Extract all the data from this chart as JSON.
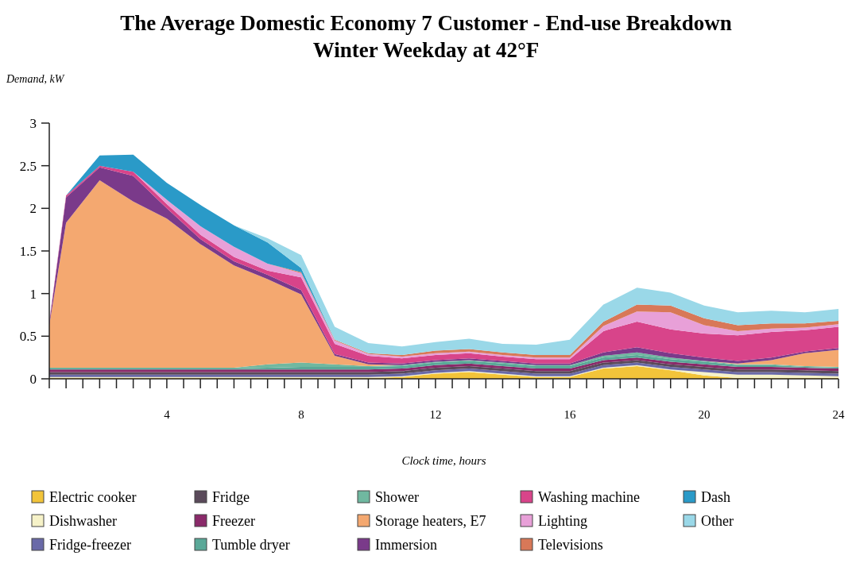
{
  "chart_data": {
    "type": "area",
    "stacked": true,
    "title": "The Average Domestic Economy 7 Customer - End-use Breakdown",
    "subtitle": "Winter Weekday at 42°F",
    "ylabel": "Demand, kW",
    "xlabel": "Clock time, hours",
    "legend": "bottom",
    "grid": false,
    "x": [
      0.5,
      1,
      2,
      3,
      4,
      5,
      6,
      7,
      8,
      9,
      10,
      11,
      12,
      13,
      14,
      15,
      16,
      17,
      18,
      19,
      20,
      21,
      22,
      23,
      24
    ],
    "xlim": [
      0.5,
      24
    ],
    "xticks": [
      {
        "value": 0.5,
        "label": null
      },
      {
        "value": 1,
        "label": null
      },
      {
        "value": 1.5,
        "label": null
      },
      {
        "value": 2,
        "label": null
      },
      {
        "value": 2.5,
        "label": null
      },
      {
        "value": 3,
        "label": null
      },
      {
        "value": 3.5,
        "label": null
      },
      4,
      {
        "value": 4.5,
        "label": null
      },
      {
        "value": 5,
        "label": null
      },
      {
        "value": 5.5,
        "label": null
      },
      {
        "value": 6,
        "label": null
      },
      {
        "value": 6.5,
        "label": null
      },
      {
        "value": 7,
        "label": null
      },
      {
        "value": 7.5,
        "label": null
      },
      8,
      {
        "value": 8.5,
        "label": null
      },
      {
        "value": 9,
        "label": null
      },
      {
        "value": 9.5,
        "label": null
      },
      {
        "value": 10,
        "label": null
      },
      {
        "value": 10.5,
        "label": null
      },
      {
        "value": 11,
        "label": null
      },
      {
        "value": 11.5,
        "label": null
      },
      12,
      {
        "value": 12.5,
        "label": null
      },
      {
        "value": 13,
        "label": null
      },
      {
        "value": 13.5,
        "label": null
      },
      {
        "value": 14,
        "label": null
      },
      {
        "value": 14.5,
        "label": null
      },
      {
        "value": 15,
        "label": null
      },
      {
        "value": 15.5,
        "label": null
      },
      16,
      {
        "value": 16.5,
        "label": null
      },
      {
        "value": 17,
        "label": null
      },
      {
        "value": 17.5,
        "label": null
      },
      {
        "value": 18,
        "label": null
      },
      {
        "value": 18.5,
        "label": null
      },
      {
        "value": 19,
        "label": null
      },
      {
        "value": 19.5,
        "label": null
      },
      20,
      {
        "value": 20.5,
        "label": null
      },
      {
        "value": 21,
        "label": null
      },
      {
        "value": 21.5,
        "label": null
      },
      {
        "value": 22,
        "label": null
      },
      {
        "value": 22.5,
        "label": null
      },
      {
        "value": 23,
        "label": null
      },
      {
        "value": 23.5,
        "label": null
      },
      24
    ],
    "ylim": [
      0,
      3
    ],
    "yticks": [
      0,
      0.5,
      1,
      1.5,
      2,
      2.5,
      3
    ],
    "series": [
      {
        "name": "Electric cooker",
        "color": "#f2c43a",
        "values": [
          0.01,
          0.01,
          0.01,
          0.01,
          0.01,
          0.01,
          0.01,
          0.01,
          0.01,
          0.01,
          0.01,
          0.02,
          0.06,
          0.08,
          0.05,
          0.02,
          0.02,
          0.12,
          0.15,
          0.1,
          0.04,
          0.01,
          0.01,
          0.01,
          0.01
        ]
      },
      {
        "name": "Dishwasher",
        "color": "#f6f2c8",
        "values": [
          0.01,
          0.01,
          0.01,
          0.01,
          0.01,
          0.01,
          0.01,
          0.01,
          0.01,
          0.01,
          0.01,
          0.01,
          0.01,
          0.01,
          0.01,
          0.01,
          0.01,
          0.01,
          0.01,
          0.01,
          0.04,
          0.04,
          0.04,
          0.03,
          0.02
        ]
      },
      {
        "name": "Fridge-freezer",
        "color": "#6a6aa8",
        "values": [
          0.03,
          0.03,
          0.03,
          0.03,
          0.03,
          0.03,
          0.03,
          0.03,
          0.03,
          0.03,
          0.03,
          0.03,
          0.03,
          0.03,
          0.03,
          0.03,
          0.03,
          0.03,
          0.03,
          0.03,
          0.03,
          0.03,
          0.03,
          0.03,
          0.03
        ]
      },
      {
        "name": "Fridge",
        "color": "#5a4a5a",
        "values": [
          0.03,
          0.03,
          0.03,
          0.03,
          0.03,
          0.03,
          0.03,
          0.03,
          0.03,
          0.03,
          0.03,
          0.03,
          0.03,
          0.03,
          0.03,
          0.03,
          0.03,
          0.03,
          0.03,
          0.03,
          0.03,
          0.03,
          0.03,
          0.03,
          0.03
        ]
      },
      {
        "name": "Freezer",
        "color": "#8a2a6a",
        "values": [
          0.03,
          0.03,
          0.03,
          0.03,
          0.03,
          0.03,
          0.03,
          0.03,
          0.03,
          0.03,
          0.03,
          0.03,
          0.03,
          0.03,
          0.03,
          0.03,
          0.03,
          0.03,
          0.03,
          0.03,
          0.03,
          0.03,
          0.03,
          0.03,
          0.03
        ]
      },
      {
        "name": "Tumble dryer",
        "color": "#5aa898",
        "values": [
          0.01,
          0.01,
          0.01,
          0.01,
          0.01,
          0.01,
          0.01,
          0.02,
          0.03,
          0.03,
          0.03,
          0.03,
          0.03,
          0.03,
          0.03,
          0.03,
          0.03,
          0.03,
          0.03,
          0.03,
          0.03,
          0.02,
          0.02,
          0.01,
          0.01
        ]
      },
      {
        "name": "Shower",
        "color": "#70b8a0",
        "values": [
          0.01,
          0.01,
          0.01,
          0.01,
          0.01,
          0.01,
          0.01,
          0.04,
          0.05,
          0.03,
          0.01,
          0.01,
          0.01,
          0.01,
          0.01,
          0.01,
          0.01,
          0.02,
          0.03,
          0.02,
          0.01,
          0.01,
          0.01,
          0.01,
          0.01
        ]
      },
      {
        "name": "Storage heaters, E7",
        "color": "#f4a870",
        "values": [
          0.5,
          1.7,
          2.2,
          1.95,
          1.75,
          1.45,
          1.2,
          1.0,
          0.8,
          0.1,
          0.02,
          0,
          0,
          0,
          0,
          0,
          0,
          0,
          0,
          0,
          0,
          0.01,
          0.05,
          0.15,
          0.2
        ]
      },
      {
        "name": "Immersion",
        "color": "#7a3a8a",
        "values": [
          0.02,
          0.3,
          0.15,
          0.3,
          0.12,
          0.06,
          0.05,
          0.05,
          0.05,
          0.02,
          0.02,
          0.02,
          0.02,
          0.02,
          0.02,
          0.02,
          0.02,
          0.04,
          0.06,
          0.05,
          0.04,
          0.03,
          0.03,
          0.02,
          0.02
        ]
      },
      {
        "name": "Washing machine",
        "color": "#d8448a",
        "values": [
          0.02,
          0.02,
          0.02,
          0.05,
          0.05,
          0.05,
          0.05,
          0.05,
          0.15,
          0.12,
          0.08,
          0.06,
          0.06,
          0.06,
          0.05,
          0.05,
          0.05,
          0.25,
          0.3,
          0.28,
          0.28,
          0.3,
          0.3,
          0.25,
          0.25
        ]
      },
      {
        "name": "Lighting",
        "color": "#e8a0d8",
        "values": [
          0,
          0,
          0,
          0,
          0.05,
          0.1,
          0.12,
          0.08,
          0.05,
          0.04,
          0.02,
          0.02,
          0.02,
          0.02,
          0.02,
          0.02,
          0.02,
          0.06,
          0.12,
          0.2,
          0.1,
          0.05,
          0.04,
          0.03,
          0.03
        ]
      },
      {
        "name": "Televisions",
        "color": "#d87858",
        "values": [
          0,
          0,
          0,
          0,
          0,
          0,
          0,
          0,
          0.01,
          0.01,
          0.01,
          0.02,
          0.03,
          0.03,
          0.03,
          0.03,
          0.03,
          0.05,
          0.08,
          0.08,
          0.08,
          0.07,
          0.06,
          0.05,
          0.04
        ]
      },
      {
        "name": "Dash",
        "color": "#2a9ac8",
        "values": [
          0,
          0,
          0.12,
          0.2,
          0.2,
          0.25,
          0.25,
          0.25,
          0.05,
          0,
          0,
          0,
          0,
          0,
          0,
          0,
          0,
          0,
          0,
          0,
          0,
          0,
          0,
          0,
          0
        ]
      },
      {
        "name": "Other",
        "color": "#9ad8e8",
        "values": [
          null,
          null,
          null,
          null,
          null,
          null,
          0,
          0.05,
          0.15,
          0.15,
          0.12,
          0.1,
          0.1,
          0.12,
          0.1,
          0.12,
          0.18,
          0.2,
          0.2,
          0.15,
          0.15,
          0.15,
          0.15,
          0.13,
          0.14
        ]
      }
    ]
  }
}
